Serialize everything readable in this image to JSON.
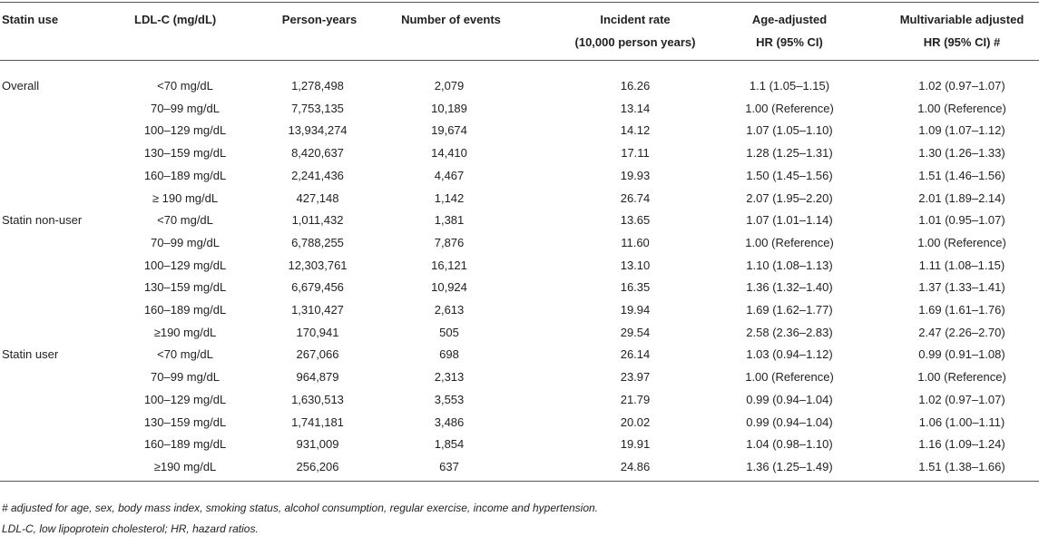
{
  "table": {
    "header": [
      [
        "Statin use"
      ],
      [
        "LDL-C (mg/dL)"
      ],
      [
        "Person-years"
      ],
      [
        "Number of events"
      ],
      [
        "Incident rate",
        "(10,000 person years)"
      ],
      [
        "Age-adjusted",
        "HR (95% CI)"
      ],
      [
        "Multivariable adjusted",
        "HR (95% CI) #"
      ]
    ],
    "groups": [
      {
        "name": "Overall",
        "rows": [
          [
            "<70 mg/dL",
            "1,278,498",
            "2,079",
            "16.26",
            "1.1 (1.05–1.15)",
            "1.02 (0.97–1.07)"
          ],
          [
            "70–99 mg/dL",
            "7,753,135",
            "10,189",
            "13.14",
            "1.00 (Reference)",
            "1.00 (Reference)"
          ],
          [
            "100–129 mg/dL",
            "13,934,274",
            "19,674",
            "14.12",
            "1.07 (1.05–1.10)",
            "1.09 (1.07–1.12)"
          ],
          [
            "130–159 mg/dL",
            "8,420,637",
            "14,410",
            "17.11",
            "1.28 (1.25–1.31)",
            "1.30 (1.26–1.33)"
          ],
          [
            "160–189 mg/dL",
            "2,241,436",
            "4,467",
            "19.93",
            "1.50 (1.45–1.56)",
            "1.51 (1.46–1.56)"
          ],
          [
            "≥ 190 mg/dL",
            "427,148",
            "1,142",
            "26.74",
            "2.07 (1.95–2.20)",
            "2.01 (1.89–2.14)"
          ]
        ]
      },
      {
        "name": "Statin non-user",
        "rows": [
          [
            "<70 mg/dL",
            "1,011,432",
            "1,381",
            "13.65",
            "1.07 (1.01–1.14)",
            "1.01 (0.95–1.07)"
          ],
          [
            "70–99 mg/dL",
            "6,788,255",
            "7,876",
            "11.60",
            "1.00 (Reference)",
            "1.00 (Reference)"
          ],
          [
            "100–129 mg/dL",
            "12,303,761",
            "16,121",
            "13.10",
            "1.10 (1.08–1.13)",
            "1.11 (1.08–1.15)"
          ],
          [
            "130–159 mg/dL",
            "6,679,456",
            "10,924",
            "16.35",
            "1.36 (1.32–1.40)",
            "1.37 (1.33–1.41)"
          ],
          [
            "160–189 mg/dL",
            "1,310,427",
            "2,613",
            "19.94",
            "1.69 (1.62–1.77)",
            "1.69 (1.61–1.76)"
          ],
          [
            "≥190 mg/dL",
            "170,941",
            "505",
            "29.54",
            "2.58 (2.36–2.83)",
            "2.47 (2.26–2.70)"
          ]
        ]
      },
      {
        "name": "Statin user",
        "rows": [
          [
            "<70 mg/dL",
            "267,066",
            "698",
            "26.14",
            "1.03 (0.94–1.12)",
            "0.99 (0.91–1.08)"
          ],
          [
            "70–99 mg/dL",
            "964,879",
            "2,313",
            "23.97",
            "1.00 (Reference)",
            "1.00 (Reference)"
          ],
          [
            "100–129 mg/dL",
            "1,630,513",
            "3,553",
            "21.79",
            "0.99 (0.94–1.04)",
            "1.02 (0.97–1.07)"
          ],
          [
            "130–159 mg/dL",
            "1,741,181",
            "3,486",
            "20.02",
            "0.99 (0.94–1.04)",
            "1.06 (1.00–1.11)"
          ],
          [
            "160–189 mg/dL",
            "931,009",
            "1,854",
            "19.91",
            "1.04 (0.98–1.10)",
            "1.16 (1.09–1.24)"
          ],
          [
            "≥190 mg/dL",
            "256,206",
            "637",
            "24.86",
            "1.36 (1.25–1.49)",
            "1.51 (1.38–1.66)"
          ]
        ]
      }
    ]
  },
  "footnotes": [
    "# adjusted for age, sex, body mass index, smoking status, alcohol consumption, regular exercise, income and hypertension.",
    "LDL-C, low lipoprotein cholesterol; HR, hazard ratios."
  ]
}
